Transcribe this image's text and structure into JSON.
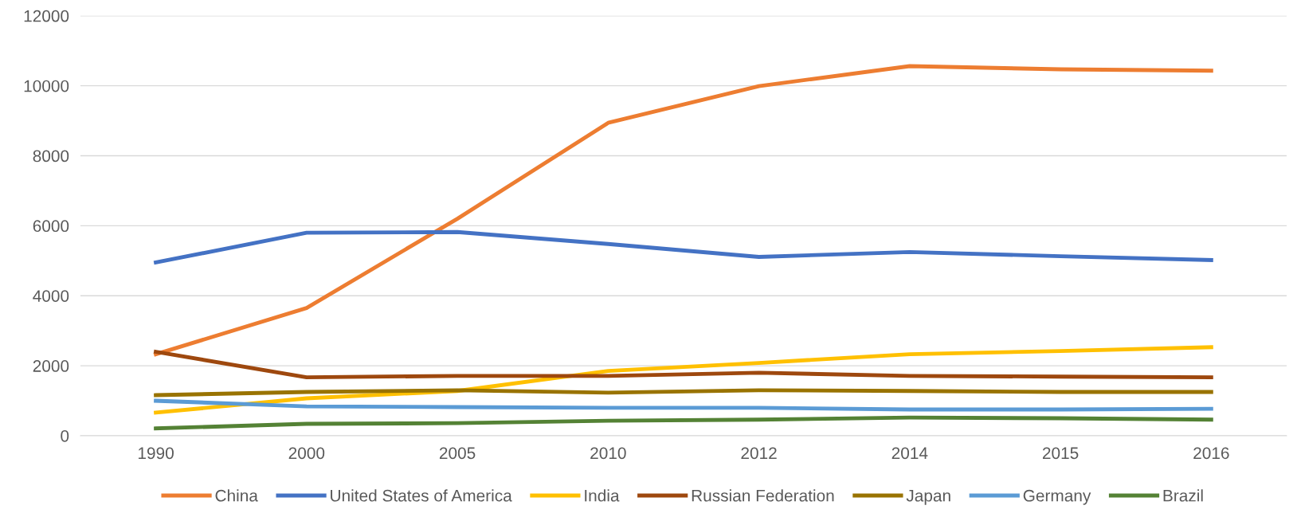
{
  "chart_data": {
    "type": "line",
    "categories": [
      "1990",
      "2000",
      "2005",
      "2010",
      "2012",
      "2014",
      "2015",
      "2016"
    ],
    "series": [
      {
        "name": "China",
        "color": "#ed7d31",
        "values": [
          2330,
          3650,
          6200,
          8940,
          9990,
          10560,
          10470,
          10430
        ]
      },
      {
        "name": "United States of America",
        "color": "#4472c4",
        "values": [
          4950,
          5800,
          5820,
          5480,
          5110,
          5250,
          5130,
          5020
        ]
      },
      {
        "name": "India",
        "color": "#ffc000",
        "values": [
          660,
          1070,
          1280,
          1850,
          2080,
          2330,
          2420,
          2530
        ]
      },
      {
        "name": "Russian Federation",
        "color": "#9e480e",
        "values": [
          2400,
          1670,
          1710,
          1710,
          1800,
          1710,
          1690,
          1670
        ]
      },
      {
        "name": "Japan",
        "color": "#997300",
        "values": [
          1160,
          1250,
          1300,
          1230,
          1300,
          1280,
          1250,
          1250
        ]
      },
      {
        "name": "Germany",
        "color": "#5b9bd5",
        "values": [
          1000,
          840,
          820,
          800,
          800,
          750,
          750,
          770
        ]
      },
      {
        "name": "Brazil",
        "color": "#548235",
        "values": [
          210,
          340,
          360,
          430,
          460,
          520,
          500,
          460
        ]
      }
    ],
    "ylim": [
      0,
      12000
    ],
    "yticks": [
      0,
      2000,
      4000,
      6000,
      8000,
      10000,
      12000
    ],
    "grid": "y",
    "legend": "bottom",
    "marker": "none",
    "line_style": "solid"
  }
}
